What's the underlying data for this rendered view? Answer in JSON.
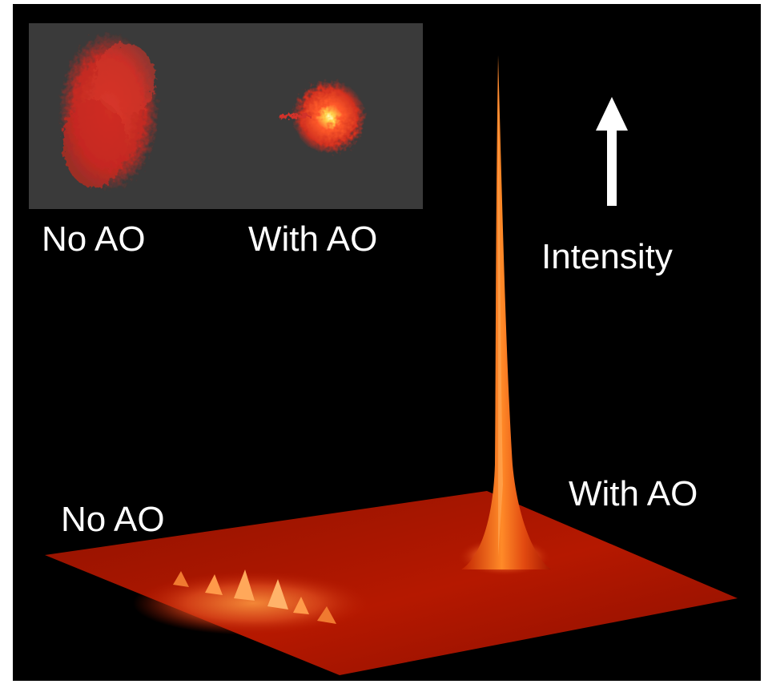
{
  "inset": {
    "left_label": "No AO",
    "right_label": "With AO"
  },
  "plot": {
    "axis_label": "Intensity",
    "left_label": "No AO",
    "right_label": "With AO"
  },
  "colors": {
    "background": "#000000",
    "inset_background": "#3a3a3a",
    "surface": "#b51800",
    "peak": "#ff7a1a",
    "arrow": "#ffffff"
  }
}
